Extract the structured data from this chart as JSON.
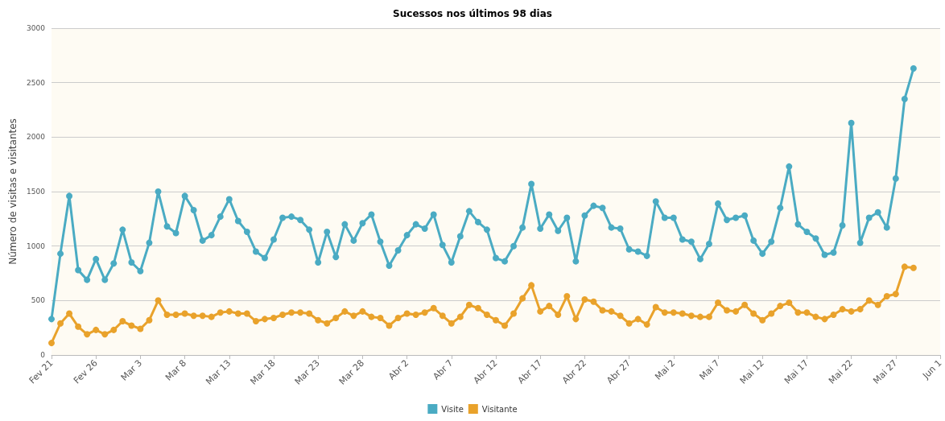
{
  "chart_data": {
    "type": "line",
    "title": "Sucessos nos últimos 98 dias",
    "ylabel": "Número de visitas e visitantes",
    "x": [
      "--02-21",
      "--02-22",
      "--02-23",
      "--02-24",
      "--02-25",
      "--02-26",
      "--02-27",
      "--02-28",
      "--03-01",
      "--03-02",
      "--03-03",
      "--03-04",
      "--03-05",
      "--03-06",
      "--03-07",
      "--03-08",
      "--03-09",
      "--03-10",
      "--03-11",
      "--03-12",
      "--03-13",
      "--03-14",
      "--03-15",
      "--03-16",
      "--03-17",
      "--03-18",
      "--03-19",
      "--03-20",
      "--03-21",
      "--03-22",
      "--03-23",
      "--03-24",
      "--03-25",
      "--03-26",
      "--03-27",
      "--03-28",
      "--03-29",
      "--03-30",
      "--03-31",
      "--04-01",
      "--04-02",
      "--04-03",
      "--04-04",
      "--04-05",
      "--04-06",
      "--04-07",
      "--04-08",
      "--04-09",
      "--04-10",
      "--04-11",
      "--04-12",
      "--04-13",
      "--04-14",
      "--04-15",
      "--04-16",
      "--04-17",
      "--04-18",
      "--04-19",
      "--04-20",
      "--04-21",
      "--04-22",
      "--04-23",
      "--04-24",
      "--04-25",
      "--04-26",
      "--04-27",
      "--04-28",
      "--04-29",
      "--04-30",
      "--05-01",
      "--05-02",
      "--05-03",
      "--05-04",
      "--05-05",
      "--05-06",
      "--05-07",
      "--05-08",
      "--05-09",
      "--05-10",
      "--05-11",
      "--05-12",
      "--05-13",
      "--05-14",
      "--05-15",
      "--05-16",
      "--05-17",
      "--05-18",
      "--05-19",
      "--05-20",
      "--05-21",
      "--05-22",
      "--05-23",
      "--05-24",
      "--05-25",
      "--05-26",
      "--05-27",
      "--05-28",
      "--05-29"
    ],
    "series": [
      {
        "name": "Visite",
        "color": "#4aabc3",
        "values": [
          330,
          930,
          1460,
          780,
          690,
          880,
          690,
          840,
          1150,
          850,
          770,
          1030,
          1500,
          1180,
          1120,
          1460,
          1330,
          1050,
          1100,
          1270,
          1430,
          1230,
          1130,
          950,
          890,
          1060,
          1260,
          1270,
          1240,
          1150,
          850,
          1130,
          900,
          1200,
          1050,
          1210,
          1290,
          1040,
          820,
          960,
          1100,
          1200,
          1160,
          1290,
          1010,
          850,
          1090,
          1320,
          1220,
          1150,
          890,
          860,
          1000,
          1170,
          1570,
          1160,
          1290,
          1140,
          1260,
          860,
          1280,
          1370,
          1350,
          1170,
          1160,
          970,
          950,
          910,
          1410,
          1260,
          1260,
          1060,
          1040,
          880,
          1020,
          1390,
          1240,
          1260,
          1280,
          1050,
          930,
          1040,
          1350,
          1730,
          1200,
          1130,
          1070,
          920,
          940,
          1190,
          2130,
          1030,
          1260,
          1310,
          1170,
          1620,
          2350,
          2630
        ]
      },
      {
        "name": "Visitante",
        "color": "#e9a22b",
        "values": [
          110,
          290,
          380,
          260,
          190,
          230,
          190,
          230,
          310,
          270,
          240,
          320,
          500,
          370,
          370,
          380,
          360,
          360,
          350,
          390,
          400,
          380,
          380,
          310,
          330,
          340,
          370,
          390,
          390,
          380,
          320,
          290,
          340,
          400,
          360,
          400,
          350,
          340,
          270,
          340,
          380,
          370,
          390,
          430,
          360,
          290,
          350,
          460,
          430,
          370,
          320,
          270,
          380,
          520,
          640,
          400,
          450,
          370,
          540,
          330,
          510,
          490,
          410,
          400,
          360,
          290,
          330,
          280,
          440,
          390,
          390,
          380,
          360,
          350,
          350,
          480,
          410,
          400,
          460,
          380,
          320,
          380,
          450,
          480,
          390,
          390,
          350,
          330,
          370,
          420,
          400,
          420,
          500,
          460,
          540,
          560,
          810,
          800
        ]
      }
    ],
    "xlim": [
      "--02-21",
      "--06-01"
    ],
    "xticks": [
      {
        "value": "--02-21",
        "label": "Fev 21"
      },
      {
        "value": "--02-26",
        "label": "Fev 26"
      },
      {
        "value": "--03-03",
        "label": "Mar 3"
      },
      {
        "value": "--03-08",
        "label": "Mar 8"
      },
      {
        "value": "--03-13",
        "label": "Mar 13"
      },
      {
        "value": "--03-18",
        "label": "Mar 18"
      },
      {
        "value": "--03-23",
        "label": "Mar 23"
      },
      {
        "value": "--03-28",
        "label": "Mar 28"
      },
      {
        "value": "--04-02",
        "label": "Abr 2"
      },
      {
        "value": "--04-07",
        "label": "Abr 7"
      },
      {
        "value": "--04-12",
        "label": "Abr 12"
      },
      {
        "value": "--04-17",
        "label": "Abr 17"
      },
      {
        "value": "--04-22",
        "label": "Abr 22"
      },
      {
        "value": "--04-27",
        "label": "Abr 27"
      },
      {
        "value": "--05-02",
        "label": "Mai 2"
      },
      {
        "value": "--05-07",
        "label": "Mai 7"
      },
      {
        "value": "--05-12",
        "label": "Mai 12"
      },
      {
        "value": "--05-17",
        "label": "Mai 17"
      },
      {
        "value": "--05-22",
        "label": "Mai 22"
      },
      {
        "value": "--05-27",
        "label": "Mai 27"
      },
      {
        "value": "--06-01",
        "label": "Jun 1"
      }
    ],
    "ylim": [
      0,
      3000
    ],
    "yticks": [
      0,
      500,
      1000,
      1500,
      2000,
      2500,
      3000
    ],
    "grid": "y",
    "legend": "bottom",
    "marker": "circle",
    "line_style": "solid"
  }
}
